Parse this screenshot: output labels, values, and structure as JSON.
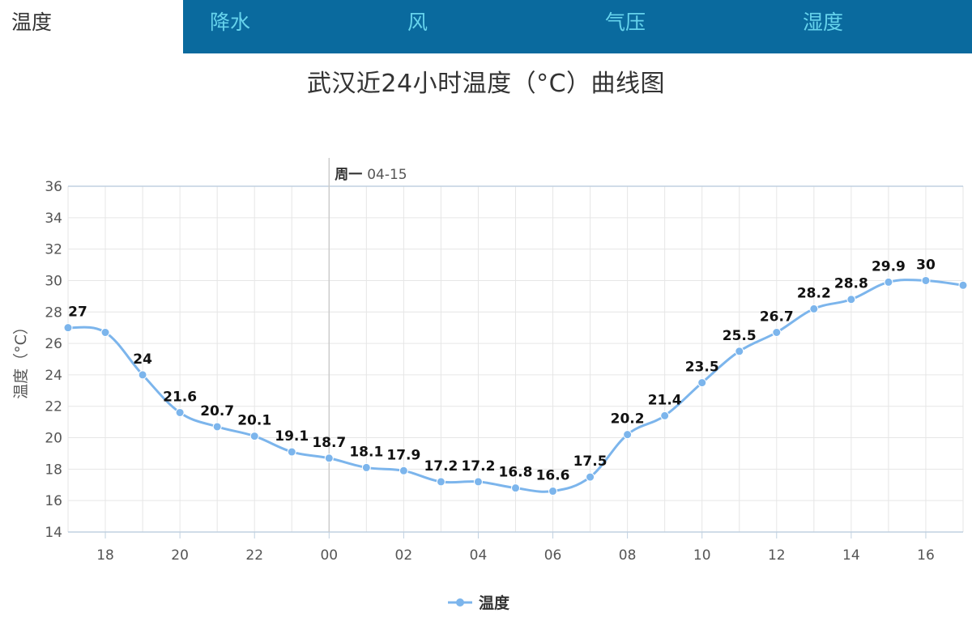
{
  "tabs": [
    {
      "label": "温度",
      "active": true
    },
    {
      "label": "降水",
      "active": false
    },
    {
      "label": "风",
      "active": false
    },
    {
      "label": "气压",
      "active": false
    },
    {
      "label": "湿度",
      "active": false
    }
  ],
  "colors": {
    "tab_bar": "#0a6a9e",
    "tab_text": "#66d3ec",
    "series": "#7cb5ec"
  },
  "chart_data": {
    "type": "line",
    "title": "武汉近24小时温度（°C）曲线图",
    "xlabel": "",
    "ylabel": "温度（°C）",
    "ylim": [
      14,
      36
    ],
    "yticks": [
      14,
      16,
      18,
      20,
      22,
      24,
      26,
      28,
      30,
      32,
      34,
      36
    ],
    "xticks": [
      "18",
      "20",
      "22",
      "00",
      "02",
      "04",
      "06",
      "08",
      "10",
      "12",
      "14",
      "16"
    ],
    "x": [
      "17",
      "18",
      "19",
      "20",
      "21",
      "22",
      "23",
      "00",
      "01",
      "02",
      "03",
      "04",
      "05",
      "06",
      "07",
      "08",
      "09",
      "10",
      "11",
      "12",
      "13",
      "14",
      "15",
      "16",
      "17"
    ],
    "series": [
      {
        "name": "温度",
        "values": [
          27,
          26.7,
          24,
          21.6,
          20.7,
          20.1,
          19.1,
          18.7,
          18.1,
          17.9,
          17.2,
          17.2,
          16.8,
          16.6,
          17.5,
          20.2,
          21.4,
          23.5,
          25.5,
          26.7,
          28.2,
          28.8,
          29.9,
          30,
          29.7
        ]
      }
    ],
    "data_labels": [
      "27",
      "",
      "24",
      "21.6",
      "20.7",
      "20.1",
      "19.1",
      "18.7",
      "18.1",
      "17.9",
      "17.2",
      "17.2",
      "16.8",
      "16.6",
      "17.5",
      "20.2",
      "21.4",
      "23.5",
      "25.5",
      "26.7",
      "28.2",
      "28.8",
      "29.9",
      "30",
      ""
    ],
    "crosshair": {
      "at": "00",
      "day": "周一",
      "date": "04-15"
    },
    "legend": {
      "placement": "bottom-center"
    },
    "grid": true
  }
}
